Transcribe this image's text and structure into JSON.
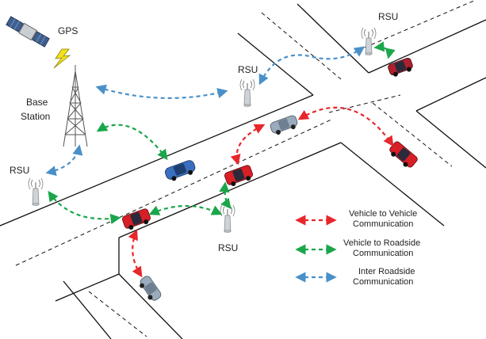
{
  "labels": {
    "gps": "GPS",
    "base_station_line1": "Base",
    "base_station_line2": "Station",
    "rsu_top_right": "RSU",
    "rsu_mid": "RSU",
    "rsu_left": "RSU",
    "rsu_bottom": "RSU"
  },
  "legend": [
    {
      "line1": "Vehicle to Vehicle",
      "line2": "Communication",
      "color": "#e8262b"
    },
    {
      "line1": "Vehicle to Roadside",
      "line2": "Communication",
      "color": "#1aa64a"
    },
    {
      "line1": "Inter Roadside",
      "line2": "Communication",
      "color": "#4a90c8"
    }
  ],
  "colors": {
    "v2v": "#e8262b",
    "v2r": "#1aa64a",
    "inter_roadside": "#4a90c8",
    "car_red": "#d81f26",
    "car_blue": "#3a6fc0",
    "car_gray": "#9aabbc",
    "road_line": "#111111"
  },
  "icons": [
    "satellite-icon",
    "lightning-icon",
    "tower-icon",
    "rsu-icon",
    "car-icon"
  ]
}
